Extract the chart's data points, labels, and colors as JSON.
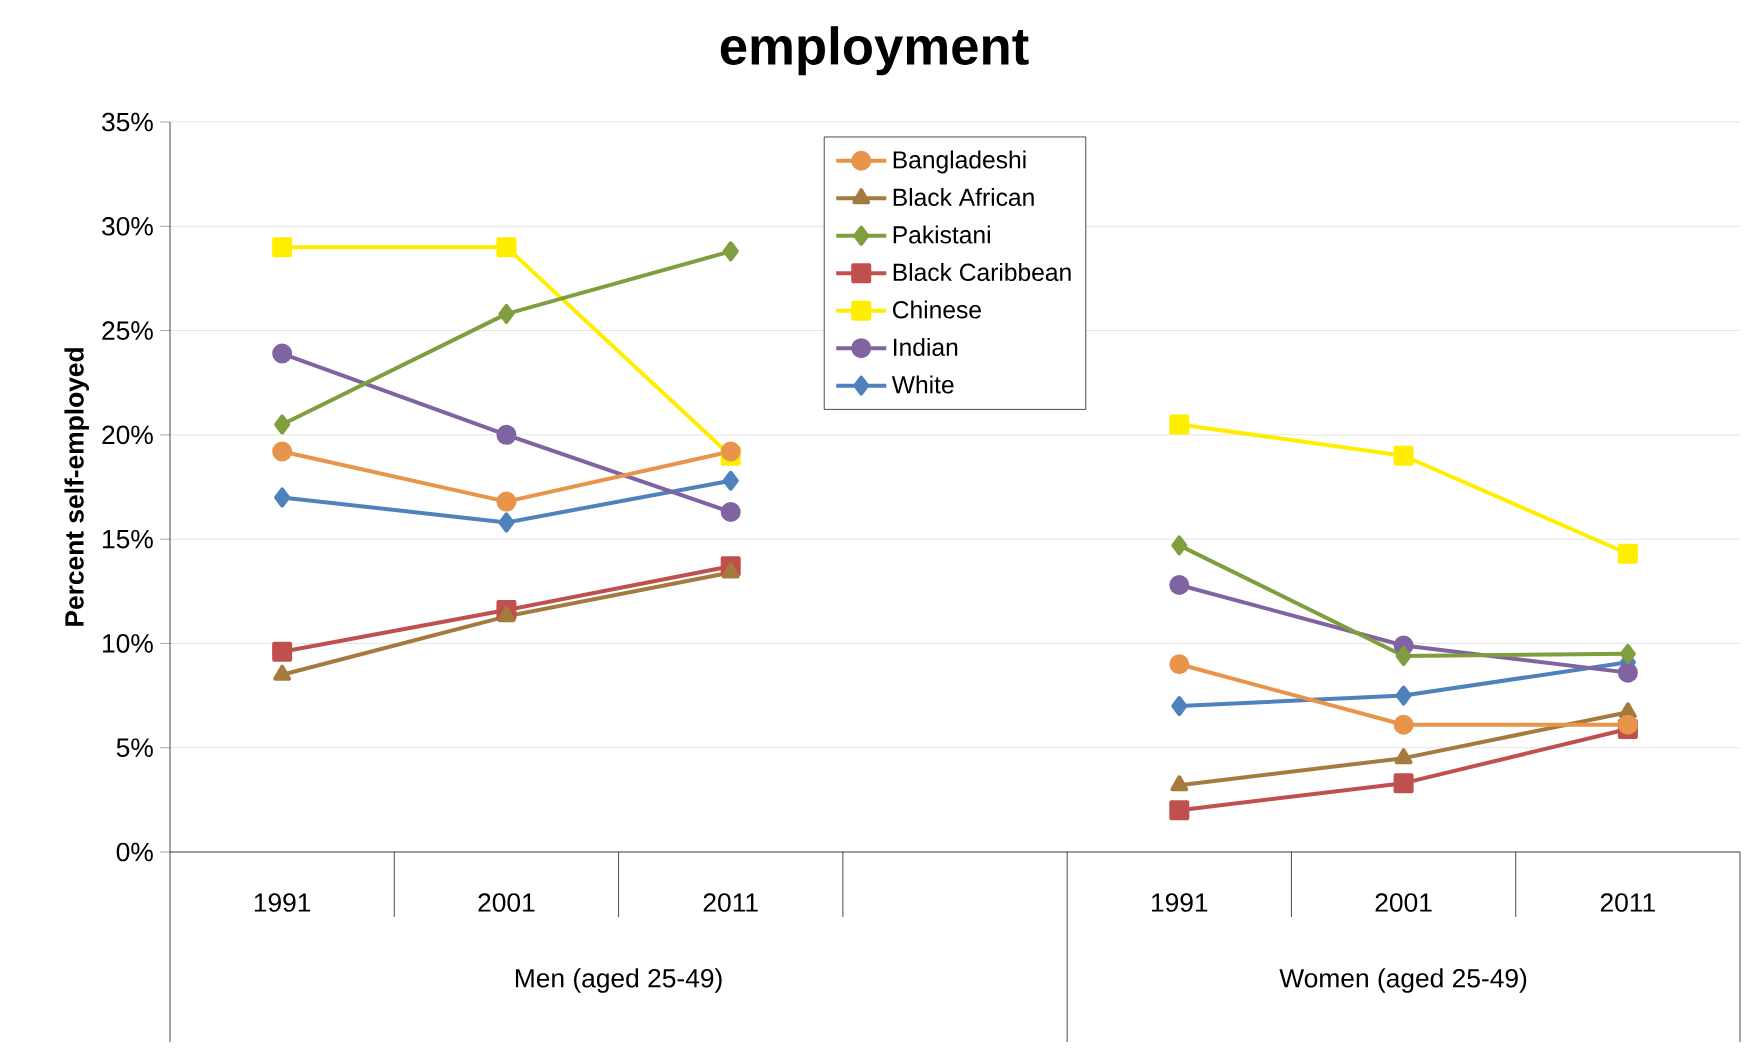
{
  "chart_data": {
    "type": "line",
    "title": "employment",
    "ylabel": "Percent self-employed",
    "categories": [
      "1991",
      "2001",
      "2011",
      null,
      "1991",
      "2001",
      "2011"
    ],
    "annotations": [
      "Men (aged 25-49)",
      "Women (aged 25-49)"
    ],
    "series": [
      {
        "name": "Bangladeshi",
        "color": "#e8944a",
        "marker": "circle",
        "values": [
          19.2,
          16.8,
          19.2,
          null,
          9.0,
          6.1,
          6.1
        ]
      },
      {
        "name": "Black African",
        "color": "#a57a3e",
        "marker": "triangle",
        "values": [
          8.5,
          11.3,
          13.4,
          null,
          3.2,
          4.5,
          6.7
        ]
      },
      {
        "name": "Pakistani",
        "color": "#7f9f3f",
        "marker": "diamond",
        "values": [
          20.5,
          25.8,
          28.8,
          null,
          14.7,
          9.4,
          9.5
        ]
      },
      {
        "name": "Black Caribbean",
        "color": "#c0504d",
        "marker": "square",
        "values": [
          9.6,
          11.6,
          13.7,
          null,
          2.0,
          3.3,
          5.9
        ]
      },
      {
        "name": "Chinese",
        "color": "#ffee00",
        "marker": "square",
        "values": [
          29.0,
          29.0,
          19.0,
          null,
          20.5,
          19.0,
          14.3
        ]
      },
      {
        "name": "Indian",
        "color": "#8064a2",
        "marker": "circle",
        "values": [
          23.9,
          20.0,
          16.3,
          null,
          12.8,
          9.9,
          8.6
        ]
      },
      {
        "name": "White",
        "color": "#4f81bd",
        "marker": "diamond",
        "values": [
          17.0,
          15.8,
          17.8,
          null,
          7.0,
          7.5,
          9.1
        ]
      }
    ],
    "ylim": [
      0,
      35
    ],
    "yticks": [
      {
        "value": 0,
        "label": "0%"
      },
      {
        "value": 5,
        "label": "5%"
      },
      {
        "value": 10,
        "label": "10%"
      },
      {
        "value": 15,
        "label": "15%"
      },
      {
        "value": 20,
        "label": "20%"
      },
      {
        "value": 25,
        "label": "25%"
      },
      {
        "value": 30,
        "label": "30%"
      },
      {
        "value": 35,
        "label": "35%"
      }
    ],
    "grid": "y",
    "legend": "top",
    "line_style": "solid"
  }
}
